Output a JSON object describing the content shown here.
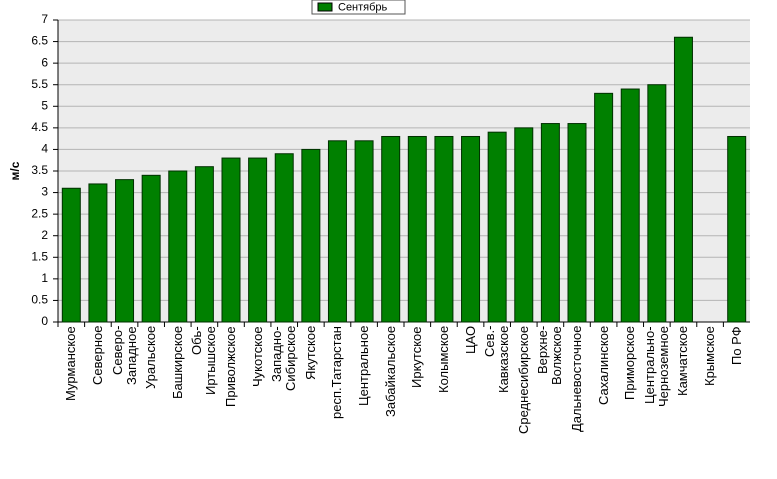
{
  "chart_data": {
    "type": "bar",
    "y_label": "м/с",
    "categories": [
      "Мурманское",
      "Северное",
      "Северо-\nЗападное",
      "Уральское",
      "Башкирское",
      "Обь-\nИртышское",
      "Приволжское",
      "Чукотское",
      "Западно-\nСибирское",
      "Якутское",
      "респ.Татарстан",
      "Центральное",
      "Забайкальское",
      "Иркутское",
      "Колымское",
      "ЦАО",
      "Сев.-\nКавказское",
      "Среднесибирское",
      "Верхне-\nВолжское",
      "Дальневосточное",
      "Сахалинское",
      "Приморское",
      "Центрально-\nЧерноземное",
      "Камчатское",
      "Крымское",
      "По РФ"
    ],
    "series": [
      {
        "name": "Сентябрь",
        "color": "#008000",
        "values": [
          3.1,
          3.2,
          3.3,
          3.4,
          3.5,
          3.6,
          3.8,
          3.8,
          3.9,
          4.0,
          4.2,
          4.2,
          4.3,
          4.3,
          4.3,
          4.3,
          4.4,
          4.5,
          4.6,
          4.6,
          5.3,
          5.4,
          5.5,
          6.6,
          null,
          4.3
        ]
      }
    ],
    "ylim": [
      0,
      7
    ],
    "yticks": [
      0,
      0.5,
      1,
      1.5,
      2,
      2.5,
      3,
      3.5,
      4,
      4.5,
      5,
      5.5,
      6,
      6.5,
      7
    ],
    "grid": true
  }
}
